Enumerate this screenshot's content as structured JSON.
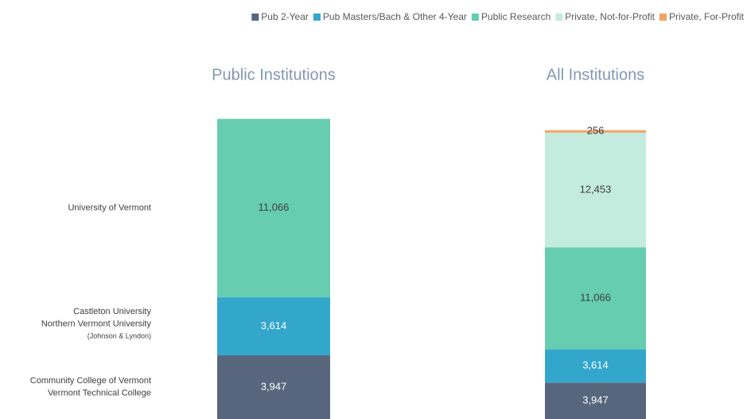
{
  "chart_data": [
    {
      "type": "bar",
      "stacked": true,
      "title": "Public Institutions",
      "categories": [
        null
      ],
      "ylim": [
        0,
        18700
      ],
      "series": [
        {
          "name": "Pub 2-Year",
          "color": "#58667d",
          "values": [
            3947
          ],
          "value_labels": [
            "3,947"
          ]
        },
        {
          "name": "Pub Masters/Bach & Other 4-Year",
          "color": "#33a6cb",
          "values": [
            3614
          ],
          "value_labels": [
            "3,614"
          ]
        },
        {
          "name": "Public Research",
          "color": "#66cdb0",
          "values": [
            11066
          ],
          "value_labels": [
            "11,066"
          ]
        }
      ],
      "annotations": [
        {
          "series": 2,
          "lines": [
            "University of Vermont"
          ]
        },
        {
          "series": 1,
          "lines": [
            "Castleton University",
            "Northern Vermont University",
            "(Johnson  & Lyndon)"
          ]
        },
        {
          "series": 0,
          "lines": [
            "Community College of Vermont",
            "Vermont Technical College"
          ]
        }
      ]
    },
    {
      "type": "bar",
      "stacked": true,
      "title": "All Institutions",
      "categories": [
        null
      ],
      "ylim": [
        0,
        32700
      ],
      "series": [
        {
          "name": "Pub 2-Year",
          "color": "#58667d",
          "values": [
            3947
          ],
          "value_labels": [
            "3,947"
          ]
        },
        {
          "name": "Pub Masters/Bach & Other 4-Year",
          "color": "#33a6cb",
          "values": [
            3614
          ],
          "value_labels": [
            "3,614"
          ]
        },
        {
          "name": "Public Research",
          "color": "#66cdb0",
          "values": [
            11066
          ],
          "value_labels": [
            "11,066"
          ]
        },
        {
          "name": "Private, Not-for-Profit",
          "color": "#c3ebde",
          "values": [
            12453
          ],
          "value_labels": [
            "12,453"
          ]
        },
        {
          "name": "Private, For-Profit",
          "color": "#f4a261",
          "values": [
            256
          ],
          "value_labels": [
            "256"
          ]
        }
      ],
      "legend": "top-right"
    }
  ]
}
